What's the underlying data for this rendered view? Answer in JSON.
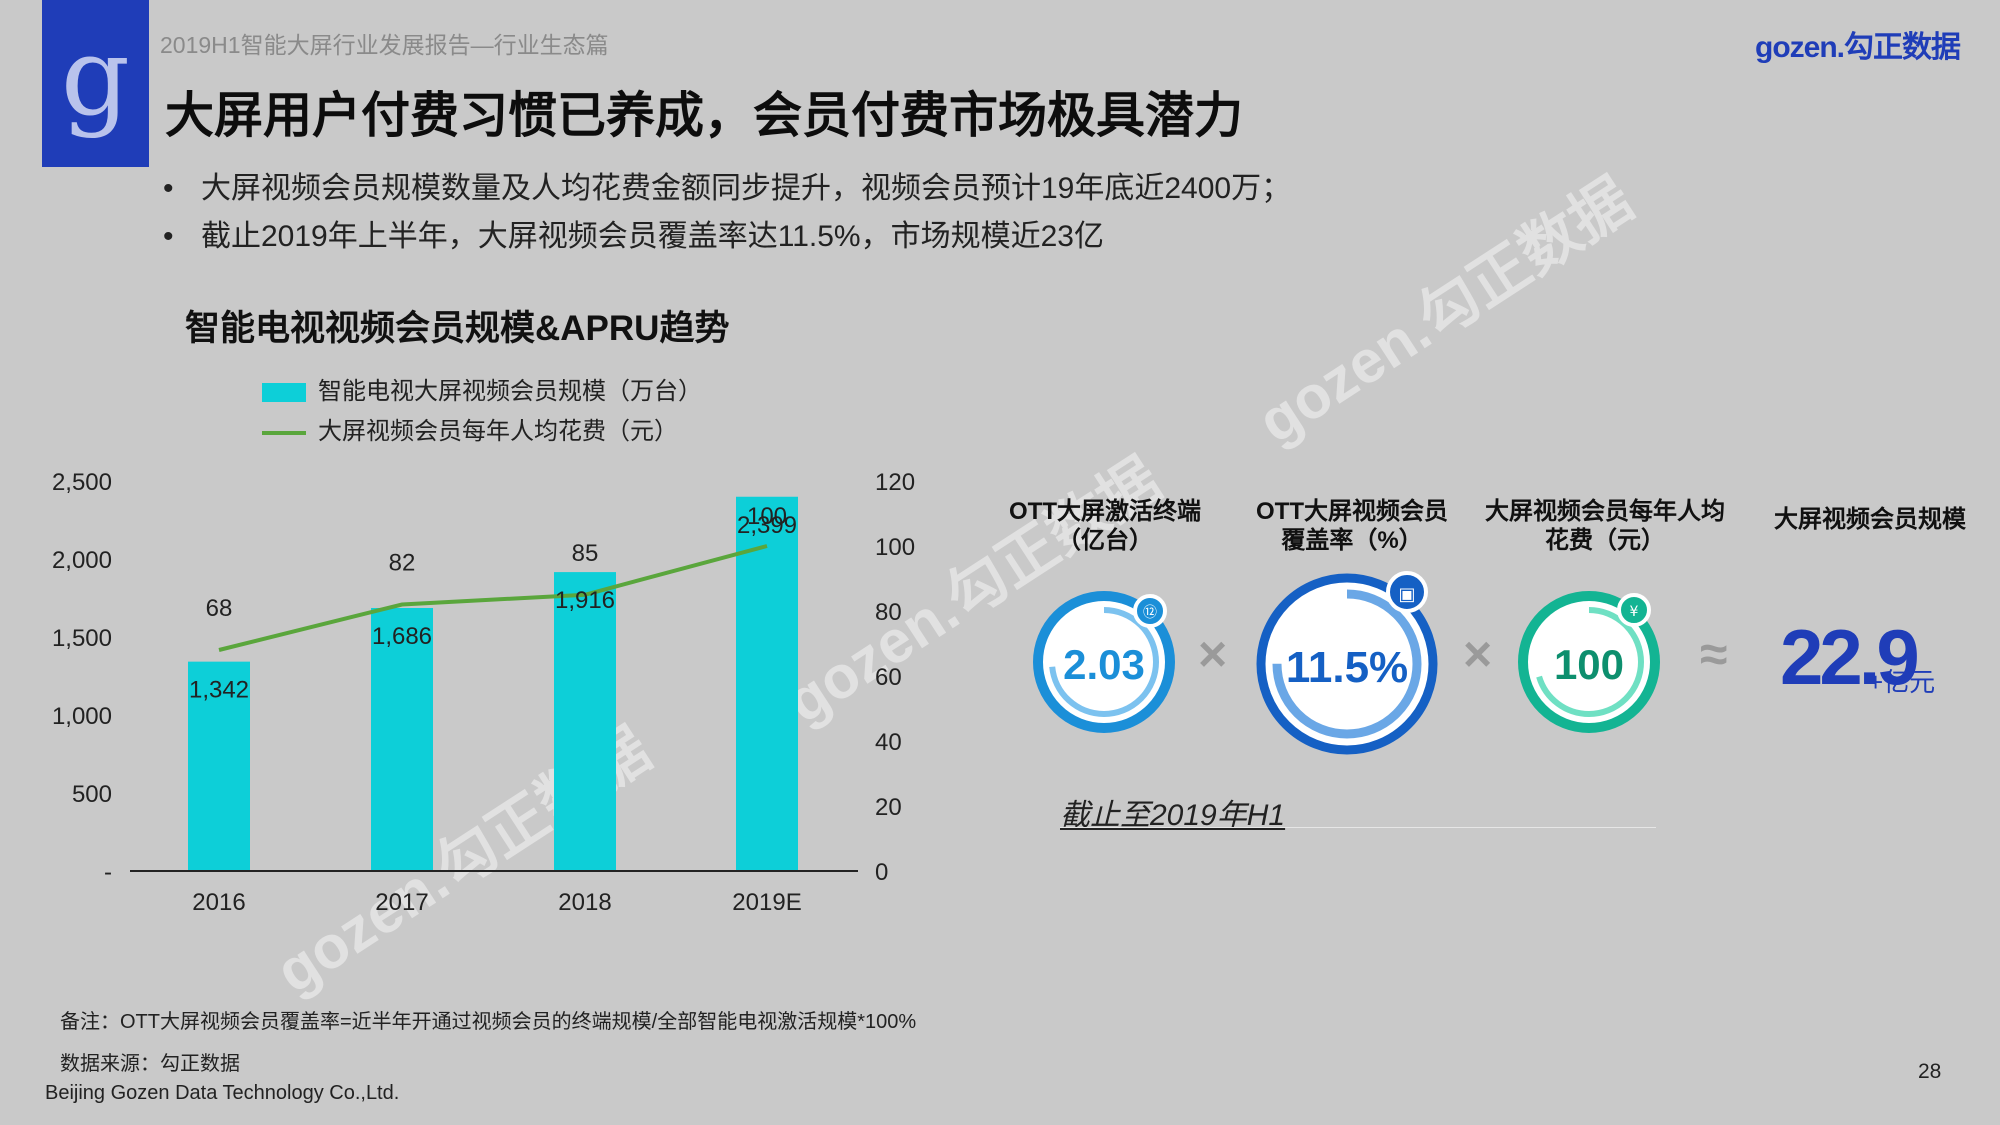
{
  "header": {
    "report_title": "2019H1智能大屏行业发展报告—行业生态篇",
    "brand": "gozen.勾正数据",
    "logo_letter": "g",
    "main_title": "大屏用户付费习惯已养成，会员付费市场极具潜力"
  },
  "bullets": [
    "大屏视频会员规模数量及人均花费金额同步提升，视频会员预计19年底近2400万；",
    "截止2019年上半年，大屏视频会员覆盖率达11.5%，市场规模近23亿"
  ],
  "bullet_symbol": "•",
  "chart_data": {
    "type": "bar+line",
    "title": "智能电视视频会员规模&APRU趋势",
    "categories": [
      "2016",
      "2017",
      "2018",
      "2019E"
    ],
    "series": [
      {
        "name": "智能电视大屏视频会员规模（万台）",
        "type": "bar",
        "axis": "left",
        "values": [
          1342,
          1686,
          1916,
          2399
        ],
        "labels": [
          "1,342",
          "1,686",
          "1,916",
          "2,399"
        ],
        "color": "#0dcfd8"
      },
      {
        "name": "大屏视频会员每年人均花费（元）",
        "type": "line",
        "axis": "right",
        "values": [
          68,
          82,
          85,
          100
        ],
        "labels": [
          "68",
          "82",
          "85",
          "100"
        ],
        "color": "#5aa63c"
      }
    ],
    "y_left": {
      "min": 0,
      "max": 2500,
      "ticks": [
        0,
        500,
        1000,
        1500,
        2000,
        2500
      ],
      "tick_labels": [
        "-",
        "500",
        "1,000",
        "1,500",
        "2,000",
        "2,500"
      ]
    },
    "y_right": {
      "min": 0,
      "max": 120,
      "ticks": [
        0,
        20,
        40,
        60,
        80,
        100,
        120
      ],
      "tick_labels": [
        "0",
        "20",
        "40",
        "60",
        "80",
        "100",
        "120"
      ]
    }
  },
  "kpis": [
    {
      "label_line1": "OTT大屏激活终端",
      "label_line2": "（亿台）",
      "value": "2.03",
      "color": "#1b8fd8",
      "icon_glyph": "⑫"
    },
    {
      "label_line1": "OTT大屏视频会员",
      "label_line2": "覆盖率（%）",
      "value": "11.5%",
      "color": "#1560c4",
      "icon_glyph": "▣"
    },
    {
      "label_line1": "大屏视频会员每年人均",
      "label_line2": "花费（元）",
      "value": "100",
      "color": "#13b493",
      "icon_glyph": "¥"
    }
  ],
  "operators": {
    "times": "×",
    "approx": "≈"
  },
  "result": {
    "label": "大屏视频会员规模",
    "value": "22.9",
    "unit": "+亿元"
  },
  "as_of": "截止至2019年H1",
  "watermark": "gozen.勾正数据",
  "footer": {
    "note": "备注：OTT大屏视频会员覆盖率=近半年开通过视频会员的终端规模/全部智能电视激活规模*100%",
    "source": "数据来源：勾正数据",
    "company": "Beijing Gozen Data Technology Co.,Ltd.",
    "page_number": "28"
  }
}
